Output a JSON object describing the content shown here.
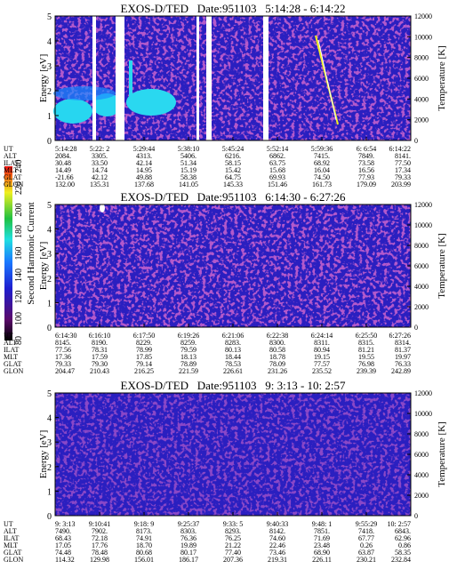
{
  "colorbar": {
    "label": "Second Harmonic Current",
    "ticks": [
      "80",
      "100",
      "120",
      "140",
      "160",
      "180",
      "200",
      "220",
      "240"
    ]
  },
  "panels": [
    {
      "title": "EXOS-D/TED   Date:951103   5:14:28 - 6:14:22",
      "y_label": "Energy [eV]",
      "y2_label": "Temperature [K]",
      "yticks": [
        "0",
        "1",
        "2",
        "3",
        "4",
        "5"
      ],
      "y2ticks": [
        "0",
        "2000",
        "4000",
        "6000",
        "8000",
        "10000",
        "12000"
      ],
      "rows": [
        [
          "UT",
          "5:14:28",
          "5:22: 2",
          "5:29:44",
          "5:38:10",
          "5:45:24",
          "5:52:14",
          "5:59:36",
          "6: 6:54",
          "6:14:22"
        ],
        [
          "ALT",
          "2084.",
          "3305.",
          "4313.",
          "5406.",
          "6216.",
          "6862.",
          "7415.",
          "7849.",
          "8141."
        ],
        [
          "ILAT",
          "30.48",
          "33.50",
          "42.14",
          "51.34",
          "58.15",
          "63.75",
          "68.92",
          "73.58",
          "77.50"
        ],
        [
          "MLT",
          "14.49",
          "14.74",
          "14.95",
          "15.19",
          "15.42",
          "15.68",
          "16.04",
          "16.56",
          "17.34"
        ],
        [
          "GLAT",
          "-21.66",
          "42.12",
          "49.88",
          "58.38",
          "64.75",
          "69.93",
          "74.50",
          "77.93",
          "79.33"
        ],
        [
          "GLON",
          "132.00",
          "135.31",
          "137.68",
          "141.05",
          "145.33",
          "151.46",
          "161.73",
          "179.09",
          "203.99"
        ]
      ]
    },
    {
      "title": "EXOS-D/TED   Date:951103   6:14:30 - 6:27:26",
      "y_label": "Energy [eV]",
      "y2_label": "Temperature [K]",
      "yticks": [
        "0",
        "1",
        "2",
        "3",
        "4",
        "5"
      ],
      "y2ticks": [
        "0",
        "2000",
        "4000",
        "6000",
        "8000",
        "10000",
        "12000"
      ],
      "rows": [
        [
          "UT",
          "6:14:30",
          "6:16:10",
          "6:17:50",
          "6:19:26",
          "6:21:06",
          "6:22:38",
          "6:24:14",
          "6:25:50",
          "6:27:26"
        ],
        [
          "ALT",
          "8145.",
          "8190.",
          "8229.",
          "8259.",
          "8283.",
          "8300.",
          "8311.",
          "8315.",
          "8314."
        ],
        [
          "ILAT",
          "77.56",
          "78.31",
          "78.99",
          "79.59",
          "80.13",
          "80.58",
          "80.94",
          "81.21",
          "81.37"
        ],
        [
          "MLT",
          "17.36",
          "17.59",
          "17.85",
          "18.13",
          "18.44",
          "18.78",
          "19.15",
          "19.55",
          "19.97"
        ],
        [
          "GLAT",
          "79.33",
          "79.30",
          "79.14",
          "78.89",
          "78.53",
          "78.09",
          "77.57",
          "76.98",
          "76.33"
        ],
        [
          "GLON",
          "204.47",
          "210.43",
          "216.25",
          "221.59",
          "226.61",
          "231.26",
          "235.52",
          "239.39",
          "242.89"
        ]
      ]
    },
    {
      "title": "EXOS-D/TED   Date:951103   9: 3:13 - 10: 2:57",
      "y_label": "Energy [eV]",
      "y2_label": "Temperature [K]",
      "yticks": [
        "0",
        "1",
        "2",
        "3",
        "4",
        "5"
      ],
      "y2ticks": [
        "0",
        "2000",
        "4000",
        "6000",
        "8000",
        "10000",
        "12000"
      ],
      "rows": [
        [
          "UT",
          "9: 3:13",
          "9:10:41",
          "9:18: 9",
          "9:25:37",
          "9:33: 5",
          "9:40:33",
          "9:48: 1",
          "9:55:29",
          "10: 2:57"
        ],
        [
          "ALT",
          "7490.",
          "7902.",
          "8173.",
          "8303.",
          "8293.",
          "8142.",
          "7851.",
          "7418.",
          "6843."
        ],
        [
          "ILAT",
          "68.43",
          "72.18",
          "74.91",
          "76.36",
          "76.25",
          "74.60",
          "71.69",
          "67.77",
          "62.96"
        ],
        [
          "MLT",
          "17.05",
          "17.76",
          "18.70",
          "19.89",
          "21.22",
          "22.46",
          "23.48",
          "0.26",
          "0.86"
        ],
        [
          "GLAT",
          "74.48",
          "78.48",
          "80.68",
          "80.17",
          "77.40",
          "73.46",
          "68.90",
          "63.87",
          "58.35"
        ],
        [
          "GLON",
          "114.32",
          "129.98",
          "156.01",
          "186.17",
          "207.36",
          "219.31",
          "226.11",
          "230.21",
          "232.84"
        ]
      ]
    }
  ]
}
